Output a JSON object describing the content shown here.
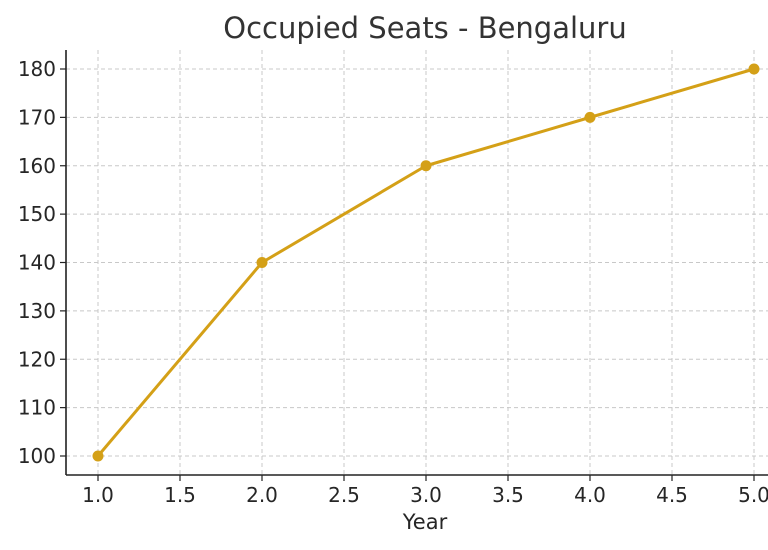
{
  "chart_data": {
    "type": "line",
    "title": "Occupied Seats - Bengaluru",
    "xlabel": "Year",
    "ylabel": "",
    "x": [
      1.0,
      2.0,
      3.0,
      4.0,
      5.0
    ],
    "series": [
      {
        "values": [
          100,
          140,
          160,
          170,
          180
        ],
        "color": "#d4a017"
      }
    ],
    "xlim": [
      0.8,
      5.0
    ],
    "ylim": [
      96,
      184
    ],
    "xticks": [
      "1.0",
      "1.5",
      "2.0",
      "2.5",
      "3.0",
      "3.5",
      "4.0",
      "4.5",
      "5.0"
    ],
    "yticks": [
      "100",
      "110",
      "120",
      "130",
      "140",
      "150",
      "160",
      "170",
      "180"
    ],
    "grid": true,
    "marker": "circle"
  }
}
